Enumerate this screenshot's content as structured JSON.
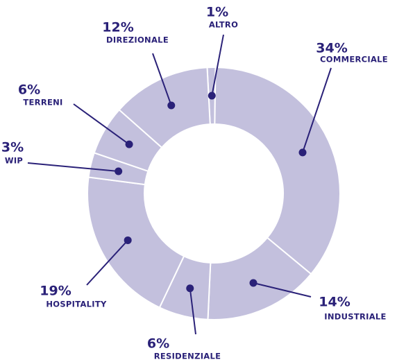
{
  "chart_data": {
    "type": "donut",
    "categories": [
      "ALTRO",
      "COMMERCIALE",
      "INDUSTRIALE",
      "RESIDENZIALE",
      "HOSPITALITY",
      "WIP",
      "TERRENI",
      "DIREZIONALE"
    ],
    "values": [
      1,
      34,
      14,
      6,
      19,
      3,
      6,
      12
    ],
    "value_labels": [
      "1%",
      "34%",
      "14%",
      "6%",
      "19%",
      "3%",
      "6%",
      "12%"
    ],
    "color": "#c3c0dd",
    "label_color": "#2a2178"
  }
}
